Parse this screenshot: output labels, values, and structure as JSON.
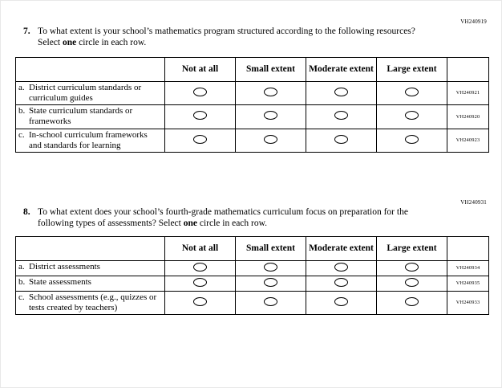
{
  "questions": [
    {
      "code": "VH240919",
      "number": "7.",
      "text_pre": "To what extent is your school’s mathematics program structured according to the following resources? Select ",
      "text_bold": "one",
      "text_post": " circle in each row.",
      "columns": [
        "Not at all",
        "Small extent",
        "Moderate extent",
        "Large extent"
      ],
      "rows": [
        {
          "letter": "a.",
          "label": "District curriculum standards or curriculum guides",
          "code": "VH240921"
        },
        {
          "letter": "b.",
          "label": "State curriculum standards or frameworks",
          "code": "VH240920"
        },
        {
          "letter": "c.",
          "label": "In-school curriculum frameworks and standards for learning",
          "code": "VH240923"
        }
      ]
    },
    {
      "code": "VH240931",
      "number": "8.",
      "text_pre": "To what extent does your school’s fourth-grade mathematics curriculum focus on preparation for the following types of assessments? Select ",
      "text_bold": "one",
      "text_post": " circle in each row.",
      "columns": [
        "Not at all",
        "Small extent",
        "Moderate extent",
        "Large extent"
      ],
      "rows": [
        {
          "letter": "a.",
          "label": "District assessments",
          "code": "VH240934"
        },
        {
          "letter": "b.",
          "label": "State assessments",
          "code": "VH240935"
        },
        {
          "letter": "c.",
          "label": "School assessments (e.g., quizzes or tests created by teachers)",
          "code": "VH240933"
        }
      ]
    }
  ]
}
